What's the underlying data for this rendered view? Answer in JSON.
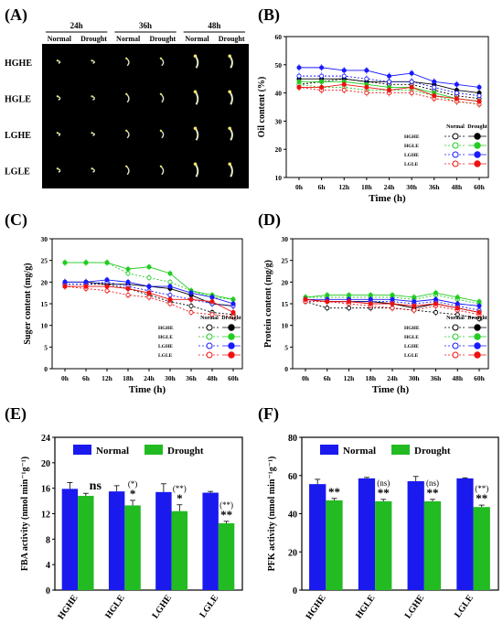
{
  "panel_letters": [
    "(A)",
    "(B)",
    "(C)",
    "(D)",
    "(E)",
    "(F)"
  ],
  "panel_a": {
    "times": [
      "24h",
      "36h",
      "48h"
    ],
    "conditions": [
      "Normal",
      "Drought"
    ],
    "rows": [
      "HGHE",
      "HGLE",
      "LGHE",
      "LGLE"
    ],
    "colors": {
      "background": "#000000",
      "seedling": "#dfe6c4",
      "seedling_tip": "#f2e36a"
    }
  },
  "lines_shared": {
    "x": [
      "0h",
      "6h",
      "12h",
      "18h",
      "24h",
      "30h",
      "36h",
      "48h",
      "60h"
    ],
    "xlabel": "Time (h)",
    "legend_header": [
      "Normal",
      "Drought"
    ],
    "groups": [
      "HGHE",
      "HGLE",
      "LGHE",
      "LGLE"
    ],
    "group_colors": {
      "HGHE": "#000000",
      "HGLE": "#22cc22",
      "LGHE": "#1a1aff",
      "LGLE": "#ee1111"
    }
  },
  "bars_shared": {
    "categories": [
      "HGHE",
      "HGLE",
      "LGHE",
      "LGLE"
    ],
    "legend": [
      "Normal",
      "Drought"
    ],
    "colors": {
      "Normal": "#1a1aee",
      "Drought": "#22bb22"
    }
  },
  "chart_data": [
    {
      "panel": "B",
      "type": "line",
      "ylabel": "Oil content (%)",
      "ylim": [
        10,
        60
      ],
      "yticks": [
        10,
        20,
        30,
        40,
        50,
        60
      ],
      "series": [
        {
          "name": "HGHE",
          "normal": [
            43,
            44,
            45,
            44,
            43,
            43,
            41,
            39,
            38
          ],
          "drought": [
            45,
            45,
            45,
            44,
            44,
            44,
            43,
            41,
            40
          ]
        },
        {
          "name": "HGLE",
          "normal": [
            43,
            42,
            42,
            41,
            41,
            41,
            39,
            37,
            36
          ],
          "drought": [
            44,
            44,
            44,
            43,
            42,
            42,
            40,
            38,
            37
          ]
        },
        {
          "name": "LGHE",
          "normal": [
            46,
            46,
            46,
            45,
            44,
            44,
            42,
            40,
            39
          ],
          "drought": [
            49,
            49,
            48,
            48,
            46,
            47,
            44,
            43,
            42
          ]
        },
        {
          "name": "LGLE",
          "normal": [
            42,
            41,
            41,
            40,
            40,
            40,
            38,
            37,
            36
          ],
          "drought": [
            42,
            42,
            43,
            42,
            41,
            42,
            39,
            38,
            37
          ]
        }
      ]
    },
    {
      "panel": "C",
      "type": "line",
      "ylabel": "Suger content (mg/g)",
      "ylim": [
        0,
        30
      ],
      "yticks": [
        0,
        5,
        10,
        15,
        20,
        25,
        30
      ],
      "series": [
        {
          "name": "HGHE",
          "normal": [
            19.5,
            19.5,
            19.5,
            18.5,
            17,
            15.5,
            14.5,
            13,
            12.5
          ],
          "drought": [
            20,
            20,
            19.5,
            19.5,
            19,
            18.5,
            17,
            15,
            14.5
          ]
        },
        {
          "name": "HGLE",
          "normal": [
            24.5,
            24.5,
            24.5,
            22,
            21,
            20,
            18,
            16.5,
            16
          ],
          "drought": [
            24.5,
            24.5,
            24.5,
            23,
            23.5,
            22,
            18,
            17,
            16
          ]
        },
        {
          "name": "LGHE",
          "normal": [
            19.5,
            19.5,
            20,
            19,
            18,
            17,
            16,
            15,
            14.5
          ],
          "drought": [
            20,
            20,
            20.5,
            20,
            19,
            19,
            17.5,
            16.5,
            15
          ]
        },
        {
          "name": "LGLE",
          "normal": [
            19,
            18.5,
            18,
            17,
            16.5,
            15,
            13,
            12.5,
            12
          ],
          "drought": [
            19,
            19,
            19,
            18.5,
            17.5,
            16,
            16,
            15.5,
            13
          ]
        }
      ]
    },
    {
      "panel": "D",
      "type": "line",
      "ylabel": "Protein content (mg/g)",
      "ylim": [
        0,
        30
      ],
      "yticks": [
        0,
        5,
        10,
        15,
        20,
        25,
        30
      ],
      "series": [
        {
          "name": "HGHE",
          "normal": [
            15.5,
            14,
            14,
            14,
            14,
            13.5,
            13,
            12.5,
            11.5
          ],
          "drought": [
            16,
            15.5,
            15.5,
            15.5,
            15,
            14,
            15,
            14,
            13
          ]
        },
        {
          "name": "HGLE",
          "normal": [
            16.5,
            16.5,
            16.5,
            16.5,
            16.5,
            16,
            17,
            16,
            15
          ],
          "drought": [
            16.5,
            17,
            17,
            17,
            17,
            16.5,
            17.5,
            16.5,
            15.5
          ]
        },
        {
          "name": "LGHE",
          "normal": [
            16,
            15.5,
            15.5,
            15.5,
            15.5,
            15,
            15.5,
            14.5,
            13.5
          ],
          "drought": [
            16,
            16,
            16,
            16,
            16,
            15.5,
            16,
            15,
            14.5
          ]
        },
        {
          "name": "LGLE",
          "normal": [
            15.5,
            15.5,
            15,
            14.5,
            14,
            13.5,
            14.5,
            13.5,
            12.5
          ],
          "drought": [
            16,
            15.5,
            15.5,
            15,
            15,
            14.5,
            15,
            14,
            13
          ]
        }
      ]
    },
    {
      "panel": "E",
      "type": "bar",
      "ylabel": "FBA activity (nmol min⁻¹g⁻¹)",
      "ylim": [
        0,
        24
      ],
      "yticks": [
        0,
        4,
        8,
        12,
        16,
        20,
        24
      ],
      "categories": [
        "HGHE",
        "HGLE",
        "LGHE",
        "LGLE"
      ],
      "series": [
        {
          "name": "Normal",
          "values": [
            15.9,
            15.5,
            15.4,
            15.3
          ],
          "errors": [
            1.0,
            0.9,
            1.3,
            0.2
          ]
        },
        {
          "name": "Drought",
          "values": [
            14.8,
            13.3,
            12.4,
            10.5
          ],
          "errors": [
            0.4,
            0.8,
            1.0,
            0.3
          ]
        }
      ],
      "annotations": [
        {
          "category": "HGHE",
          "paren": "",
          "mark": "ns"
        },
        {
          "category": "HGLE",
          "paren": "(*)",
          "mark": "*"
        },
        {
          "category": "LGHE",
          "paren": "(**)",
          "mark": "*"
        },
        {
          "category": "LGLE",
          "paren": "(**)",
          "mark": "**"
        }
      ]
    },
    {
      "panel": "F",
      "type": "bar",
      "ylabel": "PFK activity (nmol min⁻¹g⁻¹)",
      "ylim": [
        0,
        80
      ],
      "yticks": [
        0,
        20,
        40,
        60,
        80
      ],
      "categories": [
        "HGHE",
        "HGLE",
        "LGHE",
        "LGLE"
      ],
      "series": [
        {
          "name": "Normal",
          "values": [
            55.5,
            58.5,
            57,
            58.5
          ],
          "errors": [
            2.5,
            0.5,
            2.5,
            0.3
          ]
        },
        {
          "name": "Drought",
          "values": [
            47,
            46.5,
            46.5,
            43.5
          ],
          "errors": [
            1.0,
            1.0,
            1.0,
            1.0
          ]
        }
      ],
      "annotations": [
        {
          "category": "HGHE",
          "paren": "",
          "mark": "**"
        },
        {
          "category": "HGLE",
          "paren": "(ns)",
          "mark": "**"
        },
        {
          "category": "LGHE",
          "paren": "(ns)",
          "mark": "**"
        },
        {
          "category": "LGLE",
          "paren": "(**)",
          "mark": "**"
        }
      ]
    }
  ]
}
